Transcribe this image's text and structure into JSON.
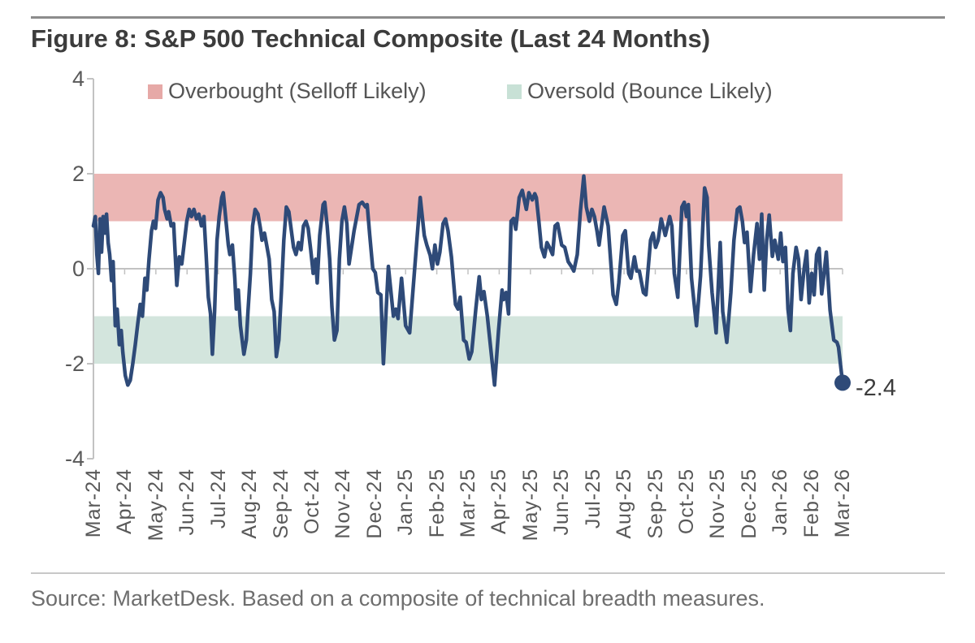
{
  "figure": {
    "title": "Figure 8: S&P 500 Technical Composite (Last 24 Months)",
    "source": "Source: MarketDesk. Based on a composite of technical breadth measures."
  },
  "legend": {
    "items": [
      {
        "label": "Overbought (Selloff Likely)",
        "color": "#E6A9A7"
      },
      {
        "label": "Oversold (Bounce Likely)",
        "color": "#C8E1D6"
      }
    ]
  },
  "chart_data": {
    "type": "line",
    "title": "S&P 500 Technical Composite (Last 24 Months)",
    "xlabel": "",
    "ylabel": "",
    "x_range_months": [
      0,
      24
    ],
    "ylim": [
      -4,
      4
    ],
    "grid": false,
    "legend_position": "top",
    "categories": [
      "Mar-24",
      "Apr-24",
      "May-24",
      "Jun-24",
      "Jul-24",
      "Aug-24",
      "Sep-24",
      "Oct-24",
      "Nov-24",
      "Dec-24",
      "Jan-25",
      "Feb-25",
      "Mar-25",
      "Apr-25",
      "May-25",
      "Jun-25",
      "Jul-25",
      "Aug-25",
      "Sep-25",
      "Oct-25",
      "Nov-25",
      "Dec-25",
      "Jan-26",
      "Feb-26",
      "Mar-26"
    ],
    "y_ticks": [
      4,
      2,
      0,
      -2,
      -4
    ],
    "axis_color": "#C2C2C2",
    "tick_label_color": "#595959",
    "bands": [
      {
        "name": "Overbought (Selloff Likely)",
        "from": 1,
        "to": 2,
        "color": "#EBB6B4"
      },
      {
        "name": "Oversold (Bounce Likely)",
        "from": -2,
        "to": -1,
        "color": "#D3E5DD"
      }
    ],
    "series": [
      {
        "name": "Technical Composite",
        "color": "#2E4A78",
        "points": [
          [
            0.0,
            0.9
          ],
          [
            0.06,
            1.1
          ],
          [
            0.11,
            0.3
          ],
          [
            0.16,
            -0.1
          ],
          [
            0.21,
            1.05
          ],
          [
            0.26,
            0.35
          ],
          [
            0.31,
            1.1
          ],
          [
            0.37,
            0.75
          ],
          [
            0.42,
            1.15
          ],
          [
            0.47,
            0.55
          ],
          [
            0.52,
            0.3
          ],
          [
            0.58,
            -0.25
          ],
          [
            0.63,
            0.15
          ],
          [
            0.7,
            -1.2
          ],
          [
            0.76,
            -0.85
          ],
          [
            0.83,
            -1.6
          ],
          [
            0.89,
            -1.3
          ],
          [
            0.94,
            -1.75
          ],
          [
            1.02,
            -2.25
          ],
          [
            1.1,
            -2.45
          ],
          [
            1.18,
            -2.35
          ],
          [
            1.26,
            -2.0
          ],
          [
            1.34,
            -1.6
          ],
          [
            1.42,
            -1.15
          ],
          [
            1.5,
            -0.75
          ],
          [
            1.57,
            -1.0
          ],
          [
            1.65,
            -0.2
          ],
          [
            1.71,
            -0.45
          ],
          [
            1.78,
            0.2
          ],
          [
            1.86,
            0.8
          ],
          [
            1.92,
            1.0
          ],
          [
            1.99,
            0.85
          ],
          [
            2.07,
            1.45
          ],
          [
            2.15,
            1.6
          ],
          [
            2.23,
            1.5
          ],
          [
            2.28,
            1.25
          ],
          [
            2.36,
            1.05
          ],
          [
            2.41,
            1.2
          ],
          [
            2.49,
            0.9
          ],
          [
            2.57,
            0.95
          ],
          [
            2.67,
            -0.35
          ],
          [
            2.75,
            0.25
          ],
          [
            2.83,
            0.1
          ],
          [
            2.91,
            0.55
          ],
          [
            2.99,
            1.0
          ],
          [
            3.07,
            1.25
          ],
          [
            3.14,
            1.1
          ],
          [
            3.22,
            1.25
          ],
          [
            3.3,
            1.05
          ],
          [
            3.38,
            1.15
          ],
          [
            3.46,
            0.9
          ],
          [
            3.54,
            1.1
          ],
          [
            3.61,
            0.3
          ],
          [
            3.68,
            -0.6
          ],
          [
            3.75,
            -0.95
          ],
          [
            3.81,
            -1.8
          ],
          [
            3.88,
            -0.9
          ],
          [
            3.96,
            0.6
          ],
          [
            4.03,
            1.1
          ],
          [
            4.11,
            1.5
          ],
          [
            4.16,
            1.6
          ],
          [
            4.24,
            1.05
          ],
          [
            4.32,
            0.5
          ],
          [
            4.37,
            0.3
          ],
          [
            4.45,
            0.5
          ],
          [
            4.53,
            -0.2
          ],
          [
            4.58,
            -0.85
          ],
          [
            4.64,
            -0.45
          ],
          [
            4.71,
            -1.2
          ],
          [
            4.82,
            -1.8
          ],
          [
            4.9,
            -1.5
          ],
          [
            4.95,
            -0.9
          ],
          [
            5.03,
            -0.1
          ],
          [
            5.1,
            0.9
          ],
          [
            5.18,
            1.25
          ],
          [
            5.27,
            1.15
          ],
          [
            5.35,
            0.85
          ],
          [
            5.4,
            0.6
          ],
          [
            5.48,
            0.75
          ],
          [
            5.55,
            0.5
          ],
          [
            5.63,
            0.2
          ],
          [
            5.71,
            -0.65
          ],
          [
            5.79,
            -0.9
          ],
          [
            5.86,
            -1.85
          ],
          [
            5.94,
            -1.5
          ],
          [
            6.02,
            -0.5
          ],
          [
            6.1,
            0.6
          ],
          [
            6.18,
            1.3
          ],
          [
            6.26,
            1.2
          ],
          [
            6.34,
            0.8
          ],
          [
            6.41,
            0.45
          ],
          [
            6.49,
            0.3
          ],
          [
            6.57,
            0.55
          ],
          [
            6.65,
            0.4
          ],
          [
            6.73,
            0.9
          ],
          [
            6.81,
            1.0
          ],
          [
            6.88,
            0.85
          ],
          [
            6.96,
            0.4
          ],
          [
            7.04,
            -0.1
          ],
          [
            7.12,
            0.2
          ],
          [
            7.17,
            -0.3
          ],
          [
            7.25,
            0.7
          ],
          [
            7.36,
            1.35
          ],
          [
            7.41,
            1.4
          ],
          [
            7.49,
            0.9
          ],
          [
            7.57,
            0.2
          ],
          [
            7.64,
            -0.8
          ],
          [
            7.72,
            -1.5
          ],
          [
            7.8,
            -1.3
          ],
          [
            7.88,
            0.2
          ],
          [
            7.96,
            1.0
          ],
          [
            8.04,
            1.3
          ],
          [
            8.12,
            0.95
          ],
          [
            8.19,
            0.1
          ],
          [
            8.35,
            0.8
          ],
          [
            8.51,
            1.35
          ],
          [
            8.61,
            1.4
          ],
          [
            8.72,
            1.3
          ],
          [
            8.77,
            1.35
          ],
          [
            8.85,
            0.72
          ],
          [
            8.95,
            0.0
          ],
          [
            9.03,
            -0.08
          ],
          [
            9.11,
            -0.5
          ],
          [
            9.21,
            -0.55
          ],
          [
            9.29,
            -2.0
          ],
          [
            9.45,
            0.05
          ],
          [
            9.61,
            -1.0
          ],
          [
            9.69,
            -0.85
          ],
          [
            9.76,
            -1.05
          ],
          [
            9.87,
            -0.2
          ],
          [
            10.0,
            -1.2
          ],
          [
            10.13,
            -1.35
          ],
          [
            10.47,
            1.5
          ],
          [
            10.6,
            0.7
          ],
          [
            10.68,
            0.5
          ],
          [
            10.79,
            0.28
          ],
          [
            10.86,
            0.0
          ],
          [
            10.94,
            0.5
          ],
          [
            11.02,
            0.1
          ],
          [
            11.1,
            0.35
          ],
          [
            11.2,
            0.95
          ],
          [
            11.28,
            1.05
          ],
          [
            11.36,
            0.8
          ],
          [
            11.47,
            0.25
          ],
          [
            11.6,
            -0.75
          ],
          [
            11.68,
            -0.85
          ],
          [
            11.75,
            -0.6
          ],
          [
            11.86,
            -1.5
          ],
          [
            11.94,
            -1.55
          ],
          [
            12.04,
            -1.9
          ],
          [
            12.12,
            -1.75
          ],
          [
            12.25,
            -0.85
          ],
          [
            12.36,
            -0.17
          ],
          [
            12.43,
            -0.65
          ],
          [
            12.51,
            -0.48
          ],
          [
            12.62,
            -1.0
          ],
          [
            12.85,
            -2.45
          ],
          [
            12.98,
            -1.3
          ],
          [
            13.09,
            -0.45
          ],
          [
            13.14,
            -0.65
          ],
          [
            13.22,
            -0.5
          ],
          [
            13.3,
            -0.95
          ],
          [
            13.38,
            1.0
          ],
          [
            13.46,
            1.06
          ],
          [
            13.53,
            0.83
          ],
          [
            13.64,
            1.5
          ],
          [
            13.74,
            1.65
          ],
          [
            13.87,
            1.25
          ],
          [
            13.95,
            1.6
          ],
          [
            14.06,
            1.45
          ],
          [
            14.14,
            1.58
          ],
          [
            14.19,
            1.5
          ],
          [
            14.27,
            1.0
          ],
          [
            14.35,
            0.45
          ],
          [
            14.45,
            0.25
          ],
          [
            14.53,
            0.55
          ],
          [
            14.61,
            0.45
          ],
          [
            14.71,
            0.3
          ],
          [
            14.79,
            0.9
          ],
          [
            14.87,
            0.95
          ],
          [
            15.0,
            0.5
          ],
          [
            15.1,
            0.45
          ],
          [
            15.21,
            0.15
          ],
          [
            15.31,
            0.05
          ],
          [
            15.39,
            -0.05
          ],
          [
            15.5,
            0.3
          ],
          [
            15.6,
            1.2
          ],
          [
            15.71,
            1.95
          ],
          [
            15.79,
            1.3
          ],
          [
            15.89,
            1.0
          ],
          [
            15.97,
            1.25
          ],
          [
            16.05,
            1.1
          ],
          [
            16.13,
            0.8
          ],
          [
            16.2,
            0.5
          ],
          [
            16.36,
            1.3
          ],
          [
            16.49,
            0.9
          ],
          [
            16.54,
            0.45
          ],
          [
            16.65,
            -0.55
          ],
          [
            16.75,
            -0.75
          ],
          [
            16.83,
            -0.3
          ],
          [
            16.96,
            0.7
          ],
          [
            17.04,
            0.8
          ],
          [
            17.15,
            -0.1
          ],
          [
            17.22,
            -0.2
          ],
          [
            17.33,
            0.25
          ],
          [
            17.41,
            -0.05
          ],
          [
            17.49,
            -0.05
          ],
          [
            17.62,
            -0.5
          ],
          [
            17.7,
            -0.55
          ],
          [
            17.85,
            0.6
          ],
          [
            17.93,
            0.75
          ],
          [
            18.01,
            0.45
          ],
          [
            18.09,
            0.6
          ],
          [
            18.19,
            1.05
          ],
          [
            18.32,
            0.7
          ],
          [
            18.46,
            1.1
          ],
          [
            18.53,
            0.9
          ],
          [
            18.61,
            -0.1
          ],
          [
            18.72,
            -0.6
          ],
          [
            18.85,
            1.3
          ],
          [
            18.93,
            1.4
          ],
          [
            19.0,
            1.1
          ],
          [
            19.06,
            1.35
          ],
          [
            19.16,
            -0.2
          ],
          [
            19.24,
            -0.7
          ],
          [
            19.32,
            -1.2
          ],
          [
            19.45,
            -0.15
          ],
          [
            19.58,
            1.7
          ],
          [
            19.66,
            1.5
          ],
          [
            19.71,
            0.5
          ],
          [
            19.82,
            -0.5
          ],
          [
            19.95,
            -1.35
          ],
          [
            20.08,
            0.55
          ],
          [
            20.16,
            -0.9
          ],
          [
            20.29,
            -1.55
          ],
          [
            20.42,
            -0.5
          ],
          [
            20.52,
            0.6
          ],
          [
            20.63,
            1.25
          ],
          [
            20.71,
            1.3
          ],
          [
            20.79,
            1.0
          ],
          [
            20.86,
            0.55
          ],
          [
            20.94,
            0.77
          ],
          [
            21.05,
            -0.48
          ],
          [
            21.15,
            0.3
          ],
          [
            21.26,
            0.95
          ],
          [
            21.34,
            0.2
          ],
          [
            21.41,
            1.15
          ],
          [
            21.49,
            -0.45
          ],
          [
            21.57,
            0.6
          ],
          [
            21.65,
            1.13
          ],
          [
            21.75,
            0.26
          ],
          [
            21.83,
            0.6
          ],
          [
            21.94,
            0.2
          ],
          [
            22.02,
            0.75
          ],
          [
            22.09,
            0.15
          ],
          [
            22.17,
            0.45
          ],
          [
            22.25,
            -0.85
          ],
          [
            22.33,
            -1.3
          ],
          [
            22.41,
            -0.1
          ],
          [
            22.51,
            0.45
          ],
          [
            22.59,
            0.2
          ],
          [
            22.67,
            -0.65
          ],
          [
            22.77,
            0.0
          ],
          [
            22.85,
            0.37
          ],
          [
            22.93,
            -0.72
          ],
          [
            23.01,
            -0.1
          ],
          [
            23.09,
            -0.55
          ],
          [
            23.17,
            0.3
          ],
          [
            23.25,
            0.43
          ],
          [
            23.33,
            -0.53
          ],
          [
            23.4,
            -0.15
          ],
          [
            23.48,
            0.35
          ],
          [
            23.6,
            -0.87
          ],
          [
            23.72,
            -1.5
          ],
          [
            23.82,
            -1.55
          ],
          [
            23.87,
            -1.65
          ],
          [
            24.0,
            -2.4
          ]
        ]
      }
    ],
    "end_point": {
      "x": 24,
      "value": -2.4,
      "label": "-2.4"
    }
  }
}
